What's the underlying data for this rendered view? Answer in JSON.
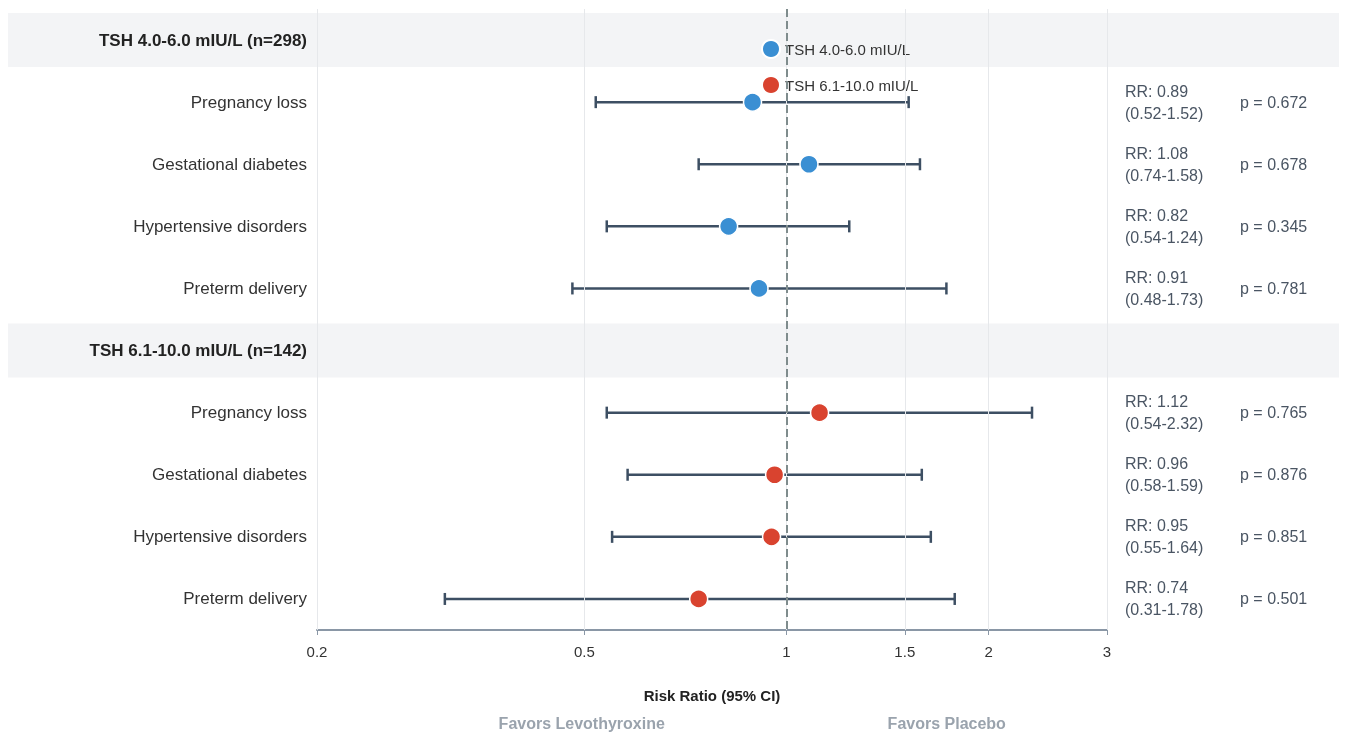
{
  "chart_data": {
    "type": "scatter",
    "categories": [
      "TSH 4.0-6.0 mIU/L (n=298)",
      "Pregnancy loss",
      "Gestational diabetes",
      "Hypertensive disorders",
      "Preterm delivery",
      "TSH 6.1-10.0 mIU/L (n=142)",
      "Pregnancy loss",
      "Gestational diabetes",
      "Hypertensive disorders",
      "Preterm delivery"
    ],
    "orientation": "horizontal",
    "series": [
      {
        "name": "TSH 4.0-6.0 mIU/L",
        "color": "#3a8fd3",
        "values": [
          null,
          0.89,
          1.08,
          0.82,
          0.91,
          null,
          null,
          null,
          null,
          null
        ],
        "errors": [
          null,
          [
            0.52,
            1.52
          ],
          [
            0.74,
            1.58
          ],
          [
            0.54,
            1.24
          ],
          [
            0.48,
            1.73
          ],
          null,
          null,
          null,
          null,
          null
        ]
      },
      {
        "name": "TSH 6.1-10.0 mIU/L",
        "color": "#d9432f",
        "values": [
          null,
          null,
          null,
          null,
          null,
          null,
          1.12,
          0.96,
          0.95,
          0.74
        ],
        "errors": [
          null,
          null,
          null,
          null,
          null,
          null,
          [
            0.54,
            2.32
          ],
          [
            0.58,
            1.59
          ],
          [
            0.55,
            1.64
          ],
          [
            0.31,
            1.78
          ]
        ]
      }
    ],
    "annotations": [
      "RR: 0.89\n(0.52-1.52)",
      "RR: 1.08\n(0.74-1.58)",
      "RR: 0.82\n(0.54-1.24)",
      "RR: 0.91\n(0.48-1.73)",
      "RR: 1.12\n(0.54-2.32)",
      "RR: 0.96\n(0.58-1.59)",
      "RR: 0.95\n(0.55-1.64)",
      "RR: 0.74\n(0.31-1.78)",
      "p = 0.672",
      "p = 0.678",
      "p = 0.345",
      "p = 0.781",
      "p = 0.765",
      "p = 0.876",
      "p = 0.851",
      "p = 0.501",
      "Favors Levothyroxine",
      "Favors Placebo"
    ],
    "xlabel": "Risk Ratio (95% CI)",
    "log": "x",
    "xlim": [
      0.2,
      3
    ],
    "xticks": [
      0.2,
      0.5,
      1,
      1.5,
      2,
      3
    ],
    "grid": "x",
    "ref_lines": [
      {
        "axis": "x",
        "value": 1,
        "color": "#7f8c8d",
        "line_style": "dashed"
      }
    ],
    "bands": [
      {
        "axis": "y",
        "from": "TSH 4.0-6.0 mIU/L (n=298)",
        "to": "TSH 4.0-6.0 mIU/L (n=298)",
        "color": "#f3f4f6"
      },
      {
        "axis": "y",
        "from": "TSH 6.1-10.0 mIU/L (n=142)",
        "to": "TSH 6.1-10.0 mIU/L (n=142)",
        "color": "#f3f4f6"
      }
    ],
    "legend": "top",
    "marker": "circle"
  }
}
